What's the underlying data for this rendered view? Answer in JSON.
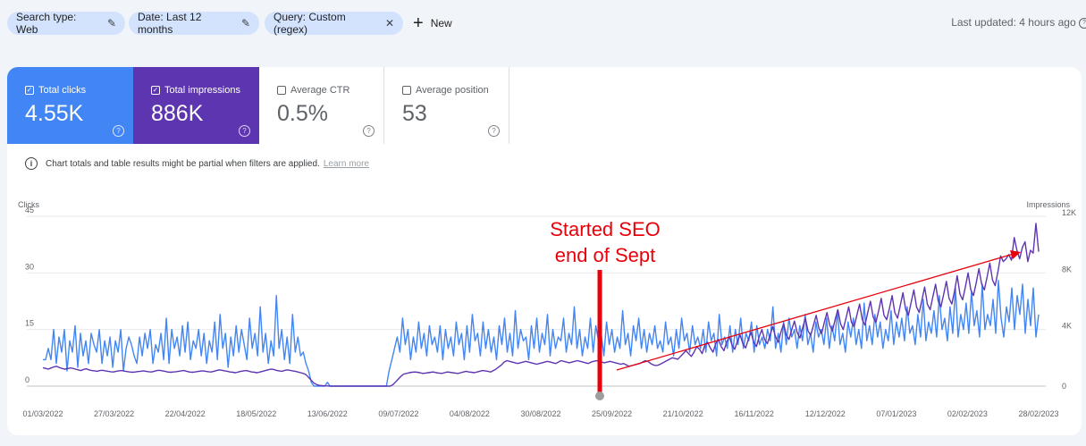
{
  "filters": {
    "search_type": "Search type: Web",
    "date": "Date: Last 12 months",
    "query": "Query: Custom (regex)",
    "new_label": "New",
    "last_updated": "Last updated: 4 hours ago"
  },
  "metrics": [
    {
      "label": "Total clicks",
      "value": "4.55K",
      "checked": true,
      "color": "#4285f4"
    },
    {
      "label": "Total impressions",
      "value": "886K",
      "checked": true,
      "color": "#5e35b1"
    },
    {
      "label": "Average CTR",
      "value": "0.5%",
      "checked": false
    },
    {
      "label": "Average position",
      "value": "53",
      "checked": false
    }
  ],
  "notice": {
    "text": "Chart totals and table results might be partial when filters are applied.",
    "link": "Learn more"
  },
  "chart_data": {
    "type": "line",
    "left_axis_label": "Clicks",
    "right_axis_label": "Impressions",
    "left_ticks": [
      "45",
      "30",
      "15",
      "0"
    ],
    "right_ticks": [
      "12K",
      "8K",
      "4K",
      "0"
    ],
    "ylim_left": [
      0,
      45
    ],
    "ylim_right": [
      0,
      12000
    ],
    "x_labels": [
      "01/03/2022",
      "27/03/2022",
      "22/04/2022",
      "18/05/2022",
      "13/06/2022",
      "09/07/2022",
      "04/08/2022",
      "30/08/2022",
      "25/09/2022",
      "21/10/2022",
      "16/11/2022",
      "12/12/2022",
      "07/01/2023",
      "02/02/2023",
      "28/02/2023"
    ],
    "series": [
      {
        "name": "Clicks",
        "color": "#4285f4",
        "axis": "left",
        "values": [
          7,
          7,
          10,
          7,
          15,
          6,
          13,
          9,
          15,
          4,
          12,
          9,
          16,
          5,
          14,
          8,
          12,
          6,
          14,
          11,
          9,
          15,
          6,
          12,
          8,
          13,
          5,
          12,
          9,
          15,
          4,
          10,
          13,
          11,
          8,
          6,
          13,
          8,
          14,
          10,
          15,
          6,
          11,
          9,
          14,
          7,
          18,
          6,
          15,
          10,
          13,
          8,
          16,
          9,
          17,
          7,
          12,
          10,
          15,
          8,
          14,
          6,
          12,
          9,
          17,
          7,
          19,
          10,
          14,
          5,
          13,
          8,
          16,
          9,
          15,
          11,
          7,
          18,
          10,
          14,
          8,
          21,
          9,
          14,
          6,
          12,
          8,
          24,
          10,
          15,
          7,
          13,
          6,
          19,
          9,
          13,
          8,
          9,
          6,
          4,
          1,
          0,
          0,
          0,
          0,
          0,
          1,
          0,
          0,
          0,
          0,
          0,
          0,
          0,
          0,
          0,
          0,
          0,
          0,
          0,
          0,
          0,
          0,
          0,
          0,
          0,
          0,
          0,
          0,
          4,
          7,
          10,
          13,
          9,
          18,
          11,
          15,
          7,
          13,
          9,
          17,
          10,
          14,
          8,
          16,
          11,
          13,
          9,
          16,
          7,
          15,
          10,
          13,
          8,
          17,
          11,
          14,
          7,
          16,
          9,
          19,
          12,
          14,
          8,
          17,
          10,
          15,
          9,
          13,
          7,
          16,
          11,
          18,
          9,
          14,
          8,
          20,
          10,
          15,
          12,
          13,
          7,
          16,
          10,
          18,
          9,
          14,
          11,
          19,
          8,
          15,
          10,
          13,
          12,
          18,
          9,
          14,
          11,
          21,
          10,
          15,
          8,
          13,
          10,
          18,
          9,
          16,
          12,
          14,
          8,
          17,
          11,
          15,
          9,
          13,
          10,
          20,
          11,
          14,
          8,
          16,
          12,
          18,
          10,
          15,
          9,
          14,
          11,
          16,
          10,
          12,
          9,
          17,
          11,
          13,
          8,
          15,
          10,
          18,
          12,
          14,
          9,
          16,
          11,
          13,
          10,
          15,
          9,
          17,
          12,
          14,
          8,
          19,
          11,
          13,
          10,
          16,
          9,
          15,
          11,
          18,
          10,
          14,
          12,
          17,
          9,
          16,
          11,
          13,
          10,
          15,
          12,
          21,
          10,
          14,
          9,
          17,
          11,
          18,
          13,
          15,
          10,
          16,
          12,
          19,
          11,
          14,
          9,
          17,
          13,
          15,
          11,
          18,
          10,
          16,
          12,
          20,
          11,
          14,
          9,
          17,
          13,
          18,
          11,
          15,
          10,
          22,
          12,
          16,
          11,
          19,
          13,
          17,
          10,
          15,
          12,
          20,
          11,
          17,
          13,
          18,
          12,
          21,
          14,
          16,
          11,
          19,
          13,
          23,
          12,
          17,
          14,
          20,
          13,
          24,
          15,
          18,
          12,
          21,
          14,
          26,
          13,
          19,
          15,
          22,
          14,
          25,
          16,
          20,
          13,
          27,
          15,
          19,
          16,
          23,
          14,
          28,
          18,
          13,
          21,
          17,
          26,
          15,
          24,
          19,
          27,
          14,
          23,
          16,
          26,
          13,
          19
        ]
      },
      {
        "name": "Impressions",
        "color": "#5e35b1",
        "axis": "right",
        "values": [
          1300,
          1250,
          1200,
          1280,
          1350,
          1400,
          1320,
          1250,
          1200,
          1230,
          1280,
          1260,
          1200,
          1150,
          1100,
          1180,
          1220,
          1150,
          1100,
          1080,
          1050,
          1100,
          1120,
          1080,
          1050,
          1020,
          1000,
          1050,
          1080,
          1100,
          1060,
          1030,
          1000,
          980,
          1000,
          1030,
          1050,
          1080,
          1050,
          1020,
          1000,
          1050,
          1100,
          1120,
          1080,
          1050,
          1000,
          980,
          1000,
          1020,
          1050,
          1080,
          1100,
          1050,
          1000,
          980,
          1000,
          1030,
          1060,
          1080,
          1050,
          1020,
          1000,
          1050,
          1100,
          1150,
          1120,
          1080,
          1050,
          1000,
          980,
          950,
          1000,
          1050,
          1080,
          1100,
          1050,
          1000,
          980,
          950,
          1000,
          1050,
          1100,
          1150,
          1200,
          1180,
          1120,
          1080,
          1050,
          1100,
          1150,
          1120,
          1080,
          1050,
          1000,
          950,
          900,
          800,
          600,
          400,
          200,
          100,
          50,
          30,
          20,
          10,
          0,
          0,
          0,
          0,
          0,
          0,
          0,
          0,
          0,
          0,
          0,
          0,
          0,
          0,
          0,
          0,
          0,
          0,
          0,
          0,
          0,
          0,
          0,
          100,
          300,
          500,
          700,
          850,
          900,
          950,
          980,
          1000,
          980,
          950,
          900,
          920,
          950,
          980,
          1000,
          950,
          920,
          900,
          950,
          1000,
          980,
          950,
          920,
          900,
          950,
          1000,
          1050,
          1000,
          980,
          950,
          1000,
          1050,
          1100,
          1080,
          1050,
          1000,
          1100,
          1200,
          1350,
          1500,
          1700,
          1800,
          1750,
          1700,
          1650,
          1600,
          1650,
          1700,
          1750,
          1700,
          1650,
          1600,
          1550,
          1600,
          1650,
          1700,
          1750,
          1700,
          1650,
          1600,
          1700,
          1800,
          1750,
          1700,
          1650,
          1700,
          1750,
          1800,
          1750,
          1700,
          1650,
          1600,
          1700,
          1750,
          1800,
          1750,
          1700,
          1650,
          1700,
          1750,
          1700,
          1650,
          1600,
          1550,
          1600,
          1500,
          1400,
          1450,
          1500,
          1550,
          1600,
          1700,
          1800,
          1750,
          1600,
          1500,
          1450,
          1500,
          1600,
          1700,
          1800,
          1900,
          2000,
          1950,
          1900,
          2100,
          2300,
          2500,
          2300,
          2100,
          2400,
          2800,
          2600,
          2300,
          2900,
          3100,
          2700,
          2400,
          3000,
          3300,
          2800,
          2500,
          3100,
          3500,
          2900,
          2600,
          3200,
          3600,
          3000,
          2700,
          3300,
          3800,
          3100,
          2800,
          3500,
          4000,
          3300,
          3000,
          3600,
          4200,
          3500,
          3100,
          3800,
          4400,
          3600,
          3300,
          4000,
          4600,
          3800,
          3400,
          4100,
          4800,
          3900,
          3600,
          4300,
          5000,
          4100,
          3700,
          4500,
          5200,
          4300,
          3900,
          4700,
          5400,
          4400,
          4000,
          4800,
          5600,
          4500,
          4200,
          5000,
          5800,
          4700,
          4300,
          5200,
          6000,
          4900,
          4500,
          5300,
          6200,
          5000,
          4700,
          5500,
          6400,
          5200,
          4800,
          5700,
          6600,
          5400,
          5000,
          5900,
          6800,
          5600,
          5200,
          6100,
          7000,
          5800,
          5400,
          6300,
          7200,
          6000,
          5600,
          6500,
          7400,
          6200,
          5800,
          6700,
          7800,
          6500,
          6100,
          7000,
          8000,
          6800,
          6400,
          7300,
          8300,
          7200,
          6800,
          7700,
          8700,
          7500,
          7100,
          8100,
          9200,
          8800,
          9000,
          9300,
          8900,
          10500,
          9600,
          9000,
          9800,
          10200,
          8800,
          9600,
          9400,
          11500,
          9500
        ]
      }
    ],
    "annotation": {
      "text_line1": "Started SEO",
      "text_line2": "end of Sept",
      "color": "#e8000b"
    }
  }
}
